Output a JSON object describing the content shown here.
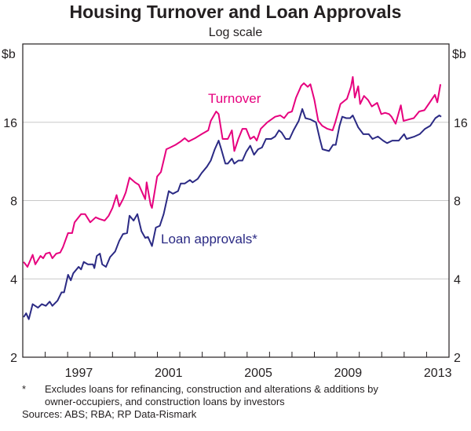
{
  "chart_data": {
    "type": "line",
    "title": "Housing Turnover and Loan Approvals",
    "subtitle": "Log scale",
    "ylabel_left": "$b",
    "ylabel_right": "$b",
    "y_scale": "log2",
    "ylim": [
      2,
      32
    ],
    "xlim": [
      1995,
      2014
    ],
    "y_ticks": [
      2,
      4,
      8,
      16
    ],
    "x_tick_labels": [
      "1997",
      "2001",
      "2005",
      "2009",
      "2013"
    ],
    "grid": "horizontal",
    "series": [
      {
        "name": "Turnover",
        "color": "#e6007e",
        "x": [
          1995.04,
          1995.21,
          1995.44,
          1995.56,
          1995.79,
          1995.91,
          1996.03,
          1996.2,
          1996.32,
          1996.49,
          1996.67,
          1996.79,
          1997.02,
          1997.2,
          1997.31,
          1997.6,
          1997.78,
          1998.01,
          1998.25,
          1998.42,
          1998.65,
          1998.83,
          1999.0,
          1999.18,
          1999.3,
          1999.47,
          1999.59,
          1999.76,
          2000.0,
          2000.17,
          2000.35,
          2000.46,
          2000.52,
          2000.7,
          2000.76,
          2000.99,
          2001.16,
          2001.4,
          2001.57,
          2001.81,
          2002.04,
          2002.22,
          2002.39,
          2002.68,
          2002.97,
          2003.27,
          2003.38,
          2003.62,
          2003.73,
          2003.91,
          2004.14,
          2004.32,
          2004.43,
          2004.61,
          2004.79,
          2004.96,
          2005.14,
          2005.31,
          2005.43,
          2005.61,
          2005.9,
          2006.25,
          2006.48,
          2006.65,
          2006.83,
          2007.0,
          2007.18,
          2007.41,
          2007.53,
          2007.7,
          2007.82,
          2008.0,
          2008.17,
          2008.35,
          2008.58,
          2008.81,
          2008.93,
          2009.16,
          2009.45,
          2009.63,
          2009.71,
          2009.8,
          2009.95,
          2010.04,
          2010.21,
          2010.39,
          2010.56,
          2010.8,
          2010.98,
          2011.15,
          2011.33,
          2011.44,
          2011.62,
          2011.85,
          2011.97,
          2012.2,
          2012.43,
          2012.67,
          2012.9,
          2013.13,
          2013.37,
          2013.48,
          2013.62
        ],
        "values": [
          4.65,
          4.45,
          4.95,
          4.55,
          4.9,
          4.8,
          5.0,
          5.05,
          4.8,
          5.0,
          5.05,
          5.3,
          6.0,
          6.0,
          6.6,
          7.1,
          7.1,
          6.6,
          6.9,
          6.8,
          6.7,
          7.0,
          7.5,
          8.4,
          7.6,
          8.1,
          8.6,
          9.8,
          9.4,
          9.2,
          8.5,
          8.1,
          9.4,
          7.7,
          7.5,
          9.9,
          10.3,
          12.6,
          12.8,
          13.1,
          13.5,
          13.9,
          13.5,
          13.9,
          14.4,
          14.9,
          16.2,
          17.6,
          17.2,
          13.8,
          13.8,
          14.9,
          12.4,
          13.8,
          15.1,
          15.1,
          13.8,
          14.1,
          13.6,
          15.1,
          16.0,
          16.8,
          17.0,
          16.6,
          17.4,
          17.6,
          19.9,
          22.1,
          22.6,
          21.9,
          22.4,
          19.5,
          16.2,
          15.5,
          15.1,
          14.9,
          16.0,
          18.8,
          19.7,
          21.9,
          23.9,
          19.9,
          22.0,
          18.8,
          20.2,
          19.5,
          18.4,
          19.0,
          17.2,
          17.4,
          17.2,
          16.8,
          15.8,
          18.6,
          16.2,
          16.4,
          16.6,
          17.6,
          17.8,
          19.0,
          20.4,
          19.1,
          22.4
        ]
      },
      {
        "name": "Loan approvals*",
        "color": "#2b2a84",
        "x": [
          1995.04,
          1995.15,
          1995.27,
          1995.44,
          1995.68,
          1995.85,
          1996.03,
          1996.2,
          1996.32,
          1996.55,
          1996.73,
          1996.84,
          1997.02,
          1997.14,
          1997.25,
          1997.49,
          1997.6,
          1997.72,
          1997.9,
          1998.13,
          1998.19,
          1998.3,
          1998.44,
          1998.54,
          1998.71,
          1998.89,
          1999.12,
          1999.3,
          1999.47,
          1999.65,
          1999.76,
          1999.94,
          2000.11,
          2000.29,
          2000.46,
          2000.58,
          2000.76,
          2000.93,
          2001.11,
          2001.28,
          2001.51,
          2001.69,
          2001.92,
          2002.04,
          2002.22,
          2002.45,
          2002.57,
          2002.8,
          2002.97,
          2003.21,
          2003.38,
          2003.56,
          2003.73,
          2003.85,
          2004.03,
          2004.14,
          2004.32,
          2004.43,
          2004.61,
          2004.79,
          2004.96,
          2005.14,
          2005.31,
          2005.49,
          2005.66,
          2005.84,
          2006.07,
          2006.25,
          2006.42,
          2006.54,
          2006.72,
          2006.89,
          2007.07,
          2007.3,
          2007.46,
          2007.6,
          2007.83,
          2008.07,
          2008.24,
          2008.36,
          2008.65,
          2008.83,
          2008.95,
          2009.12,
          2009.24,
          2009.42,
          2009.59,
          2009.71,
          2009.95,
          2010.18,
          2010.42,
          2010.59,
          2010.83,
          2011.06,
          2011.24,
          2011.47,
          2011.76,
          2012.0,
          2012.11,
          2012.46,
          2012.69,
          2012.93,
          2013.16,
          2013.39,
          2013.57,
          2013.65
        ],
        "values": [
          2.85,
          2.95,
          2.8,
          3.2,
          3.1,
          3.2,
          3.15,
          3.27,
          3.15,
          3.3,
          3.55,
          3.55,
          4.15,
          3.95,
          4.2,
          4.45,
          4.35,
          4.65,
          4.55,
          4.55,
          4.4,
          4.9,
          5.0,
          4.55,
          4.45,
          4.85,
          5.1,
          5.6,
          5.95,
          6.0,
          7.0,
          6.7,
          7.1,
          6.1,
          5.75,
          5.8,
          5.35,
          6.3,
          6.4,
          7.1,
          8.7,
          8.5,
          8.7,
          9.3,
          9.3,
          9.6,
          9.4,
          9.7,
          10.2,
          10.8,
          11.4,
          12.6,
          13.6,
          12.6,
          11.1,
          11.1,
          11.6,
          11.1,
          11.4,
          11.4,
          12.3,
          13.0,
          12.0,
          12.6,
          12.8,
          13.8,
          13.8,
          14.1,
          14.9,
          14.6,
          13.8,
          13.8,
          14.9,
          16.2,
          18.0,
          16.6,
          16.4,
          16.0,
          13.8,
          12.6,
          12.4,
          13.1,
          13.1,
          15.5,
          16.8,
          16.6,
          16.6,
          17.0,
          15.3,
          14.4,
          14.4,
          13.8,
          14.1,
          13.6,
          13.3,
          13.6,
          13.6,
          14.4,
          13.8,
          14.1,
          14.4,
          15.1,
          15.5,
          16.6,
          17.0,
          16.8
        ]
      }
    ]
  },
  "footnotes": {
    "marker": "*",
    "line1": "Excludes loans for refinancing, construction and alterations & additions by",
    "line2": "owner-occupiers, and construction loans by investors",
    "sources": "Sources: ABS; RBA; RP Data-Rismark"
  }
}
